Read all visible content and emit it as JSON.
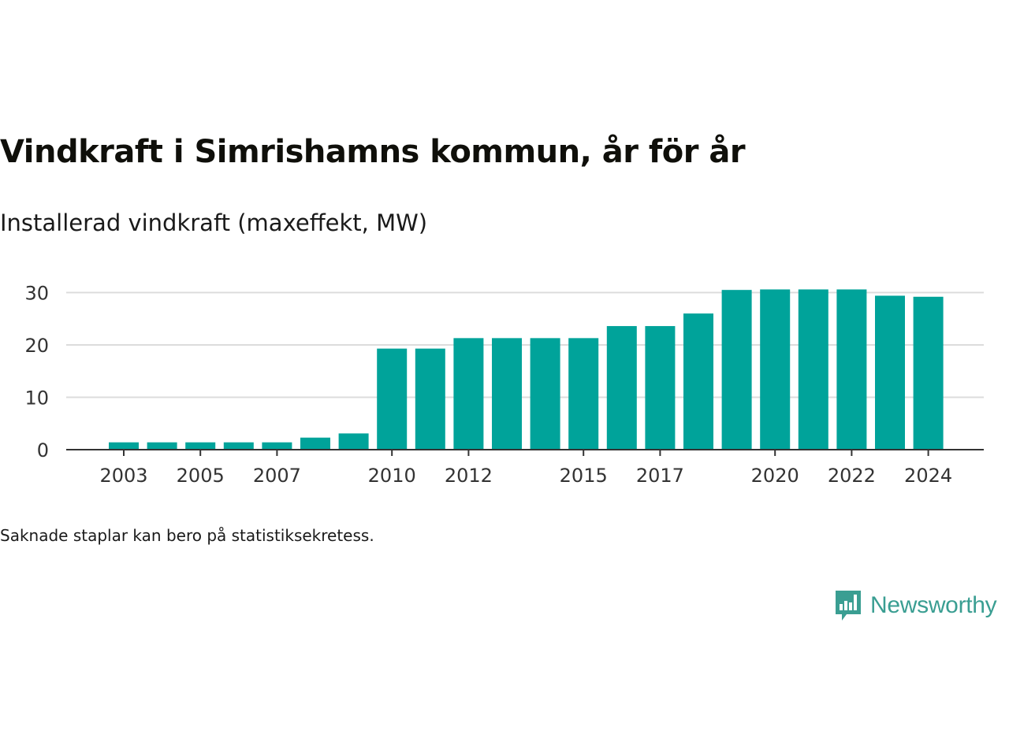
{
  "title": "Vindkraft i Simrishamns kommun, år för år",
  "subtitle": "Installerad vindkraft (maxeffekt, MW)",
  "note": "Saknade staplar kan bero på statistiksekretess.",
  "brand": {
    "name": "Newsworthy",
    "color": "#3a9e92"
  },
  "colors": {
    "bar": "#00a39a",
    "grid": "#dcdcdc",
    "axis": "#333333",
    "tick_text": "#333333"
  },
  "chart_data": {
    "type": "bar",
    "categories": [
      "2003",
      "2004",
      "2005",
      "2006",
      "2007",
      "2008",
      "2009",
      "2010",
      "2011",
      "2012",
      "2013",
      "2014",
      "2015",
      "2016",
      "2017",
      "2018",
      "2019",
      "2020",
      "2021",
      "2022",
      "2023",
      "2024"
    ],
    "values": [
      1.4,
      1.4,
      1.4,
      1.4,
      1.4,
      2.3,
      3.1,
      19.3,
      19.3,
      21.3,
      21.3,
      21.3,
      21.3,
      23.6,
      23.6,
      26.0,
      30.5,
      30.6,
      30.6,
      30.6,
      29.4,
      29.2
    ],
    "x_tick_labels": [
      "2003",
      "2005",
      "2007",
      "2010",
      "2012",
      "2015",
      "2017",
      "2020",
      "2022",
      "2024"
    ],
    "y_ticks": [
      0,
      10,
      20,
      30
    ],
    "ylim": [
      0,
      32
    ],
    "xlabel": "",
    "ylabel": "",
    "grid": true
  }
}
